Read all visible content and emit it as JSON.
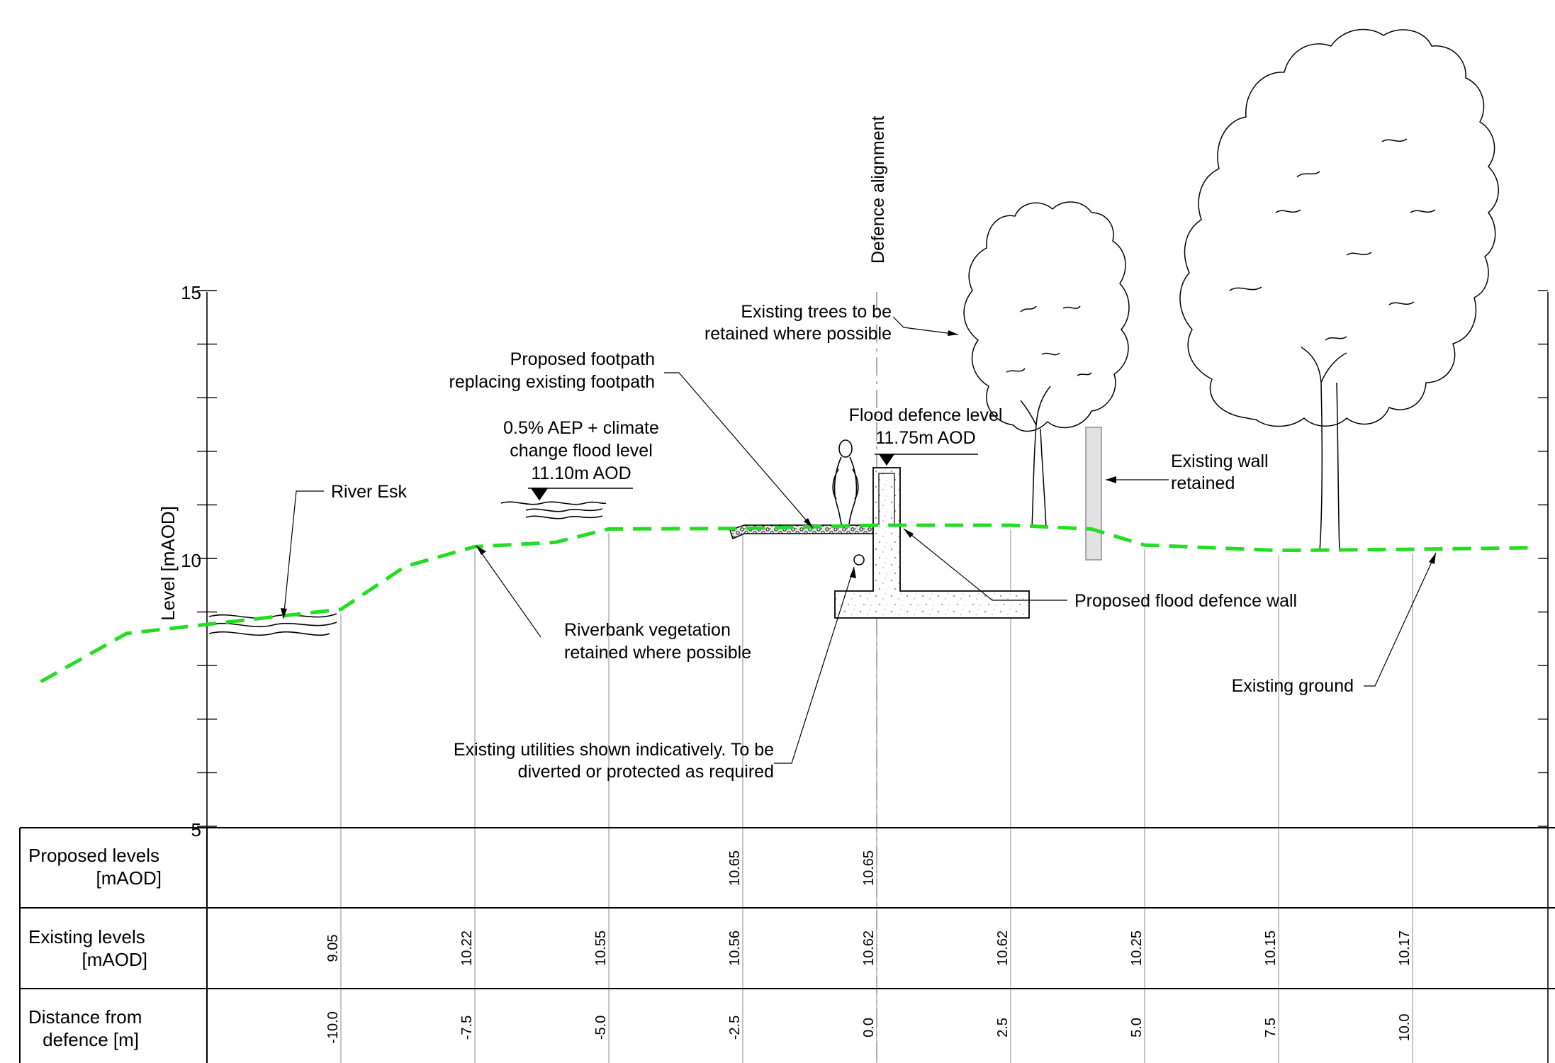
{
  "chart_data": {
    "type": "line",
    "ylabel": "Level [mAOD]",
    "y_ticks": [
      "15",
      "10",
      "5"
    ],
    "ylim": [
      5,
      15
    ],
    "series": [
      {
        "name": "Existing ground",
        "color": "#22dd22",
        "points": [
          [
            -15.6,
            7.7
          ],
          [
            -14.0,
            8.6
          ],
          [
            -10.0,
            9.05
          ],
          [
            -8.8,
            9.85
          ],
          [
            -7.5,
            10.22
          ],
          [
            -6.0,
            10.3
          ],
          [
            -5.0,
            10.55
          ],
          [
            -2.5,
            10.56
          ],
          [
            0.0,
            10.62
          ],
          [
            2.5,
            10.62
          ],
          [
            4.0,
            10.55
          ],
          [
            5.0,
            10.25
          ],
          [
            7.5,
            10.15
          ],
          [
            10.0,
            10.17
          ],
          [
            12.3,
            10.2
          ]
        ]
      }
    ],
    "table": {
      "rows": [
        {
          "label_line1": "Proposed levels",
          "label_line2": "[mAOD]",
          "cells": [
            {
              "x": -2.5,
              "text": "10.65"
            },
            {
              "x": 0.0,
              "text": "10.65"
            }
          ]
        },
        {
          "label_line1": "Existing levels",
          "label_line2": "[mAOD]",
          "cells": [
            {
              "x": -10.0,
              "text": "9.05"
            },
            {
              "x": -7.5,
              "text": "10.22"
            },
            {
              "x": -5.0,
              "text": "10.55"
            },
            {
              "x": -2.5,
              "text": "10.56"
            },
            {
              "x": 0.0,
              "text": "10.62"
            },
            {
              "x": 2.5,
              "text": "10.62"
            },
            {
              "x": 5.0,
              "text": "10.25"
            },
            {
              "x": 7.5,
              "text": "10.15"
            },
            {
              "x": 10.0,
              "text": "10.17"
            }
          ]
        },
        {
          "label_line1": "Distance from",
          "label_line2": "defence [m]",
          "cells": [
            {
              "x": -10.0,
              "text": "-10.0"
            },
            {
              "x": -7.5,
              "text": "-7.5"
            },
            {
              "x": -5.0,
              "text": "-5.0"
            },
            {
              "x": -2.5,
              "text": "-2.5"
            },
            {
              "x": 0.0,
              "text": "0.0"
            },
            {
              "x": 2.5,
              "text": "2.5"
            },
            {
              "x": 5.0,
              "text": "5.0"
            },
            {
              "x": 7.5,
              "text": "7.5"
            },
            {
              "x": 10.0,
              "text": "10.0"
            }
          ]
        }
      ]
    }
  },
  "annotations": {
    "defence_alignment": "Defence alignment",
    "river_esk": "River Esk",
    "flood_level": [
      "0.5% AEP + climate",
      "change flood level",
      "11.10m AOD"
    ],
    "footpath": [
      "Proposed footpath",
      "replacing existing footpath"
    ],
    "trees": [
      "Existing trees to be",
      "retained where possible"
    ],
    "defence_level": [
      "Flood defence level",
      "11.75m AOD"
    ],
    "existing_wall": [
      "Existing wall",
      "retained"
    ],
    "defence_wall": "Proposed flood defence wall",
    "vegetation": [
      "Riverbank vegetation",
      "retained where possible"
    ],
    "utilities": [
      "Existing utilities shown indicatively. To be",
      "diverted or protected as required"
    ],
    "existing_ground": "Existing ground"
  },
  "colors": {
    "ground_line": "#22dd22",
    "wall_retained": "#e2e2e2"
  }
}
